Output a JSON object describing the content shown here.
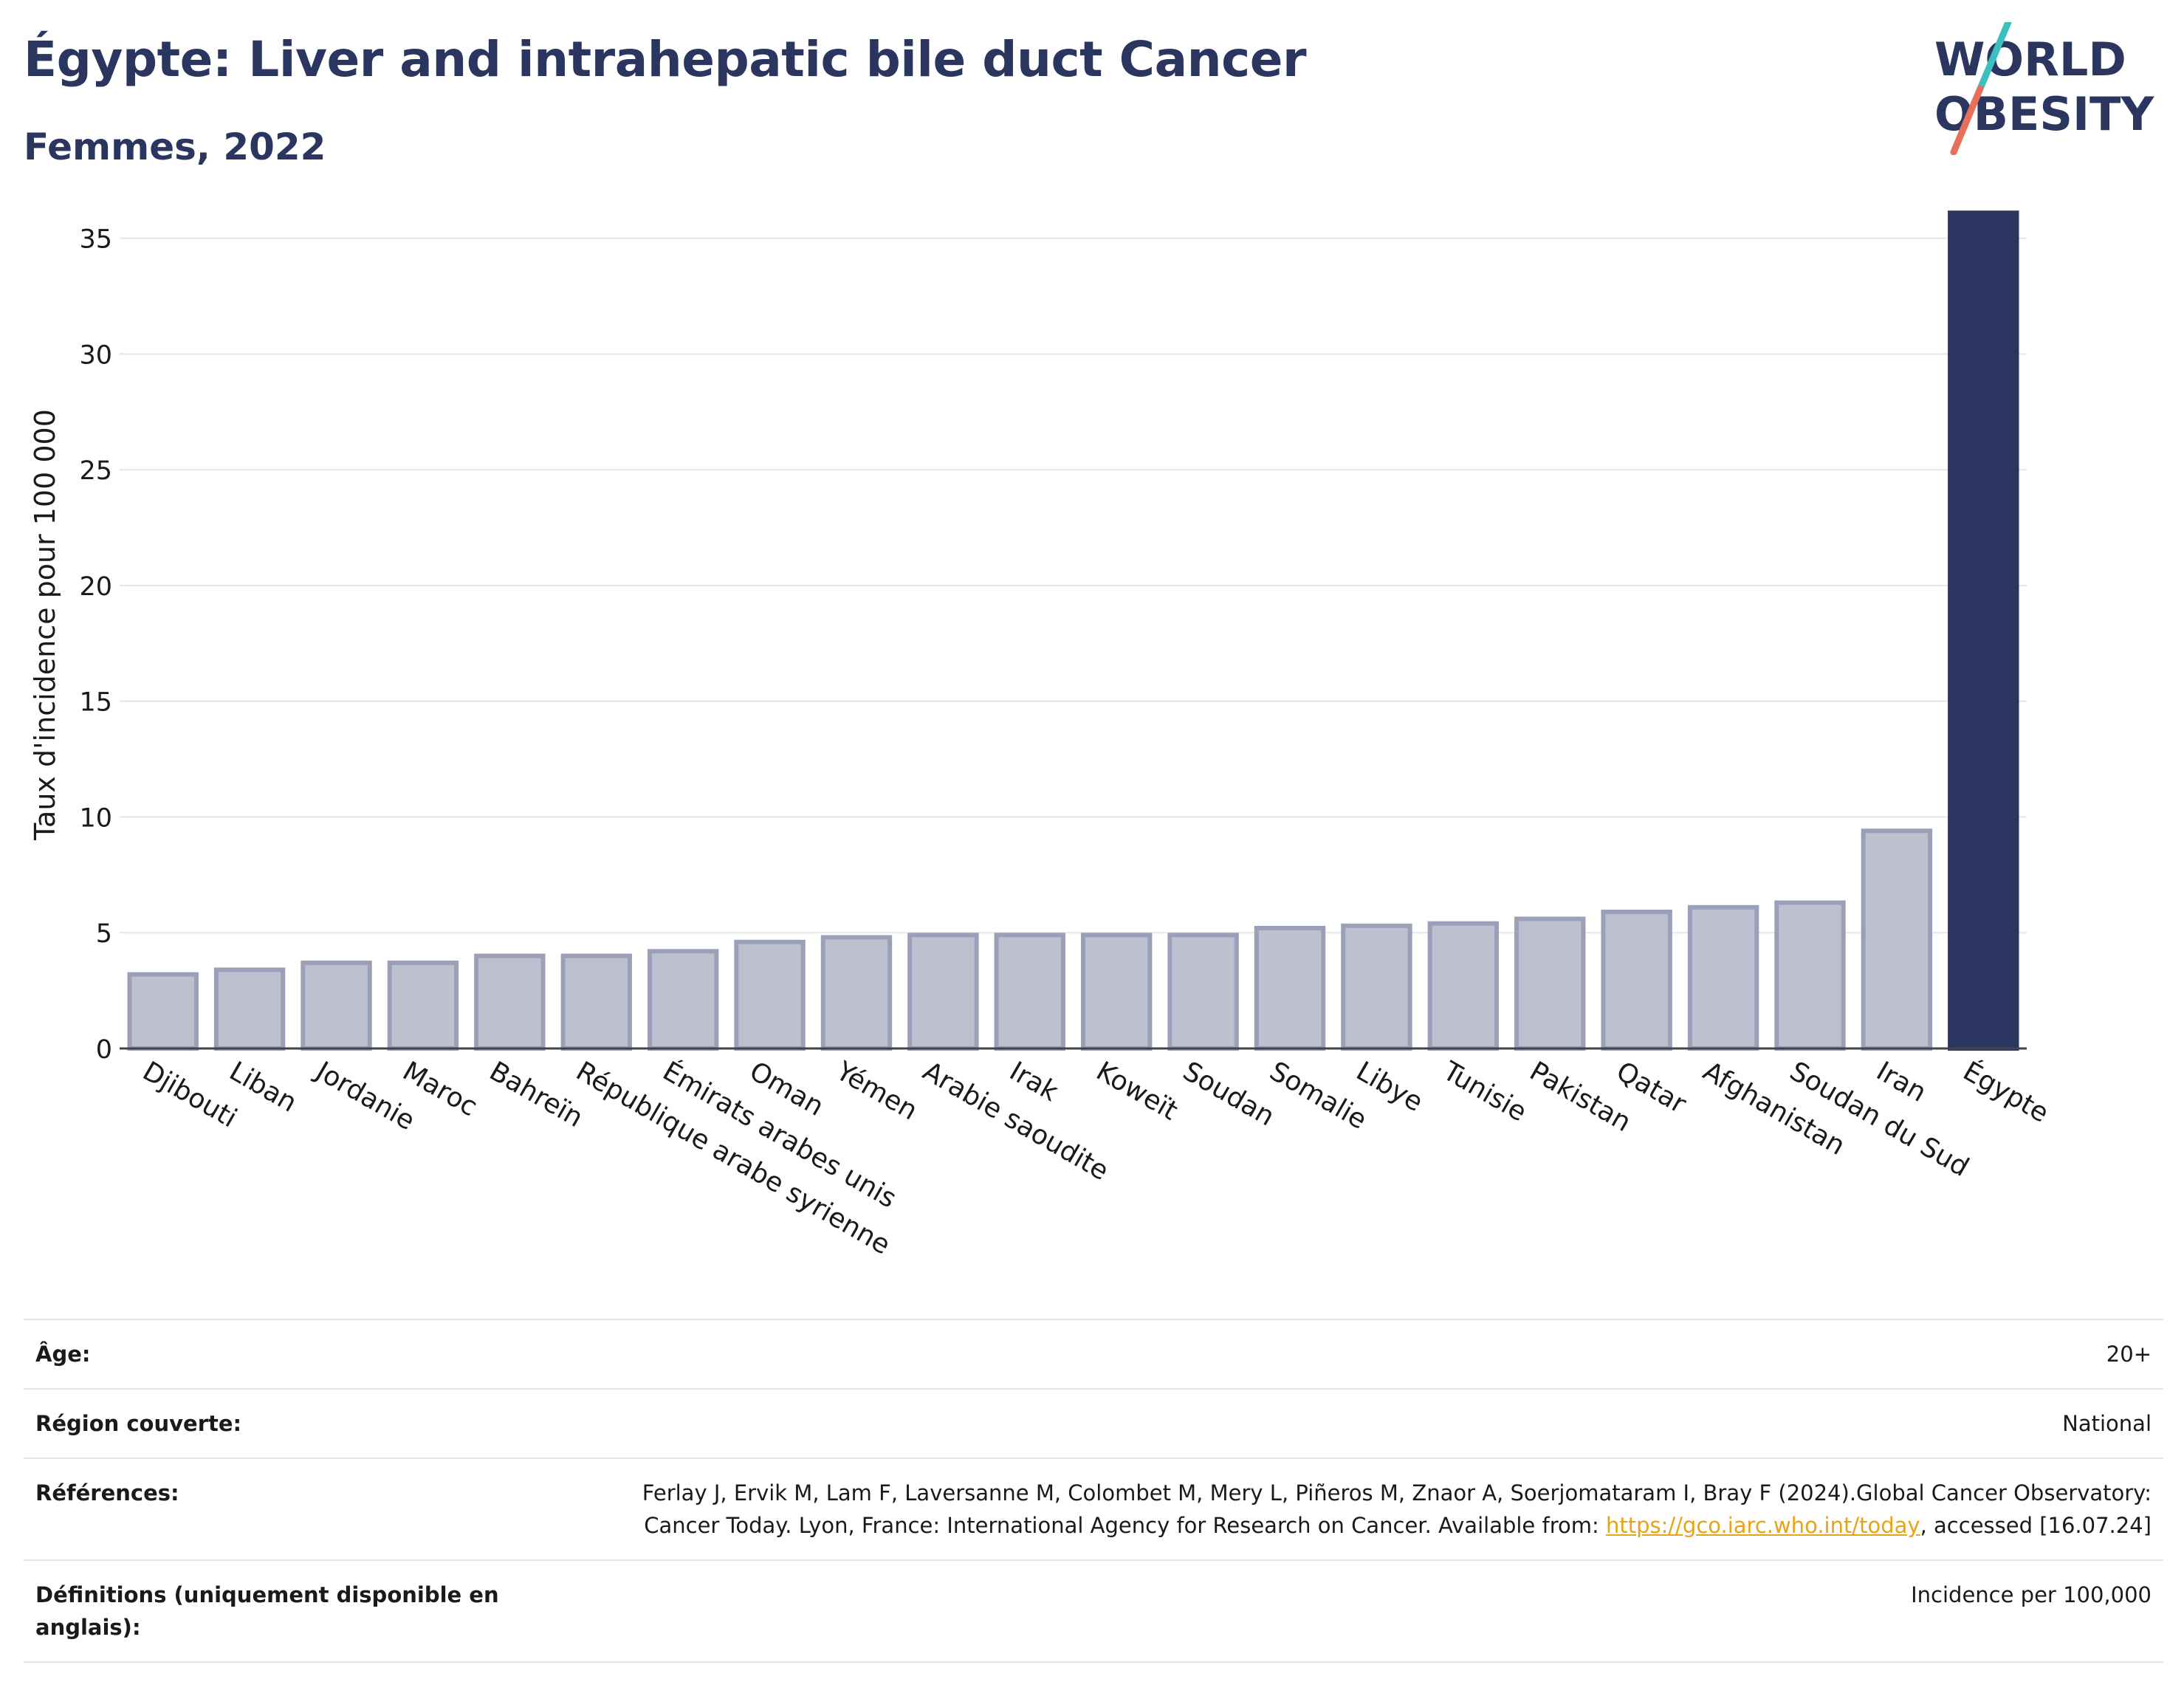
{
  "header": {
    "title": "Égypte: Liver and intrahepatic bile duct Cancer",
    "subtitle": "Femmes, 2022",
    "logo_line1": "WORLD",
    "logo_line2": "OBESITY"
  },
  "colors": {
    "highlight_bar": "#2a3560",
    "other_bar_fill": "#bdc0ce",
    "other_bar_stroke": "#9ba0b8",
    "logo_teal": "#3bbfbf",
    "logo_coral": "#e8705a"
  },
  "chart_data": {
    "type": "bar",
    "title": "Égypte: Liver and intrahepatic bile duct Cancer",
    "subtitle": "Femmes, 2022",
    "ylabel": "Taux d'incidence pour 100 000",
    "xlabel": "",
    "ylim": [
      0,
      37
    ],
    "yticks": [
      0,
      5,
      10,
      15,
      20,
      25,
      30,
      35
    ],
    "grid": true,
    "highlight": "Égypte",
    "categories": [
      "Djibouti",
      "Liban",
      "Jordanie",
      "Maroc",
      "Bahreïn",
      "République arabe syrienne",
      "Émirats arabes unis",
      "Oman",
      "Yémen",
      "Arabie saoudite",
      "Irak",
      "Koweït",
      "Soudan",
      "Somalie",
      "Libye",
      "Tunisie",
      "Pakistan",
      "Qatar",
      "Afghanistan",
      "Soudan du Sud",
      "Iran",
      "Égypte"
    ],
    "values": [
      3.2,
      3.4,
      3.7,
      3.7,
      4.0,
      4.0,
      4.2,
      4.6,
      4.8,
      4.9,
      4.9,
      4.9,
      4.9,
      5.2,
      5.3,
      5.4,
      5.6,
      5.9,
      6.1,
      6.3,
      9.4,
      36.1
    ]
  },
  "meta": {
    "rows": [
      {
        "label": "Âge:",
        "value": "20+"
      },
      {
        "label": "Région couverte:",
        "value": "National"
      },
      {
        "label": "Références:",
        "value_pre": "Ferlay J, Ervik M, Lam F, Laversanne M, Colombet M, Mery L, Piñeros M, Znaor A, Soerjomataram I, Bray F (2024).Global Cancer Observatory: Cancer Today. Lyon, France: International Agency for Research on Cancer. Available from: ",
        "link": "https://gco.iarc.who.int/today",
        "value_post": ", accessed [16.07.24]"
      },
      {
        "label": "Définitions (uniquement disponible en anglais):",
        "value": "Incidence per 100,000"
      }
    ]
  }
}
